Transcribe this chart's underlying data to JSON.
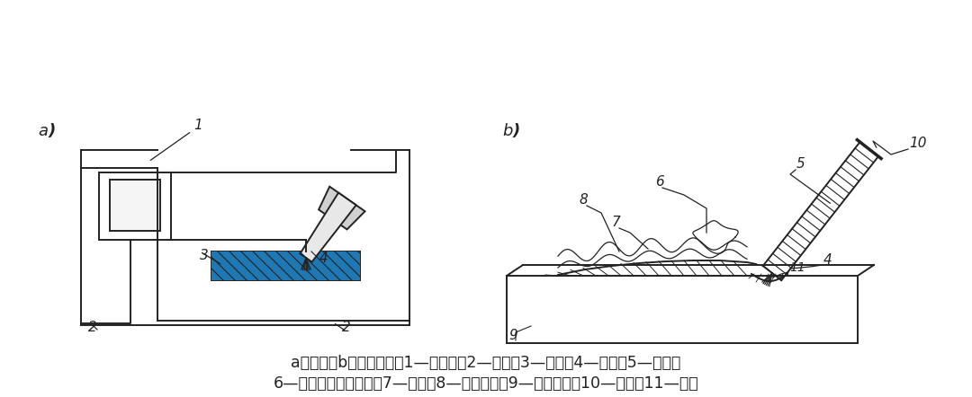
{
  "fig_width": 10.8,
  "fig_height": 4.42,
  "dpi": 100,
  "bg_color": "#ffffff",
  "line_color": "#222222",
  "caption_line1": "a）电路；b）施焊过程；1—电焊机；2—导线；3—焊件；4—电弧；5—药皮；",
  "caption_line2": "6—起保护作用的气体；7—熔渣；8—焊缝金属；9—主体金属；10—焊丝；11—熔池"
}
